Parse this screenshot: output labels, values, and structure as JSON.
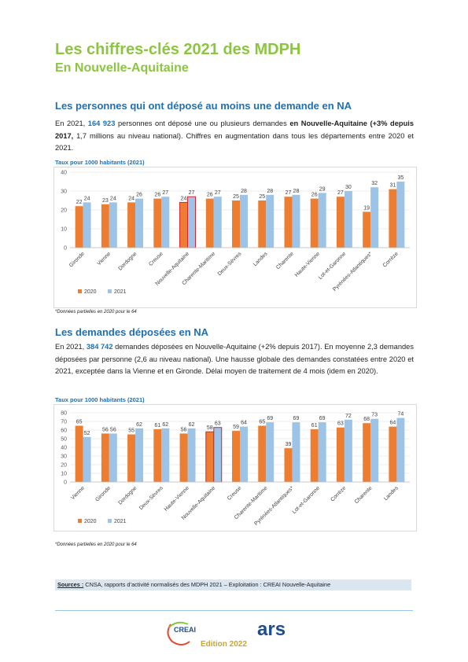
{
  "header": {
    "title": "Les chiffres-clés 2021 des MDPH",
    "subtitle": "En Nouvelle-Aquitaine"
  },
  "sections": [
    {
      "heading": "Les personnes qui ont déposé au moins une demande en NA",
      "paragraph": [
        "En 2021, ",
        "164 923",
        " personnes ont déposé une ou plusieurs demandes ",
        "en Nouvelle-Aquitaine (+3% depuis 2017,",
        " 1,7 millions au niveau national). Chiffres en augmentation dans tous les départements entre 2020 et 2021."
      ],
      "footnote": "*Données partielles en 2020 pour le 64"
    },
    {
      "heading": "Les demandes déposées en NA",
      "paragraph": [
        "En 2021, ",
        "384 742",
        " demandes déposées en Nouvelle-Aquitaine (+2% depuis 2017). En moyenne 2,3 demandes déposées par personne (2,6 au niveau national). Une hausse globale des demandes constatées entre 2020 et 2021, exceptée dans la Vienne et en Gironde. Délai moyen de traitement de 4 mois (idem en 2020)."
      ],
      "footnote": "*Données partielles en 2020 pour le 64"
    }
  ],
  "chart_data": [
    {
      "type": "bar",
      "title": "Taux pour 1000 habitants (2021)",
      "categories": [
        "Gironde",
        "Vienne",
        "Dordogne",
        "Creuse",
        "Nouvelle-Aquitaine",
        "Charente-Maritime",
        "Deux-Sèvres",
        "Landes",
        "Charente",
        "Haute-Vienne",
        "Lot-et-Garonne",
        "Pyrénées-Atlantiques*",
        "Corrèze"
      ],
      "series": [
        {
          "name": "2020",
          "color": "#ed7d31",
          "values": [
            22,
            23,
            24,
            26,
            24,
            26,
            25,
            25,
            27,
            26,
            27,
            19,
            31
          ]
        },
        {
          "name": "2021",
          "color": "#9dc3e6",
          "values": [
            24,
            24,
            26,
            27,
            27,
            27,
            28,
            28,
            28,
            29,
            30,
            32,
            35
          ]
        }
      ],
      "ylim": [
        0,
        40
      ],
      "yticks": [
        0,
        10,
        20,
        30,
        40
      ],
      "grid": true,
      "highlight_index": 4,
      "highlight_color": "#e0202a",
      "legend": "bottom-left"
    },
    {
      "type": "bar",
      "title": "Taux pour 1000 habitants (2021)",
      "categories": [
        "Vienne",
        "Gironde",
        "Dordogne",
        "Deux-Sèvres",
        "Haute-Vienne",
        "Nouvelle-Aquitaine",
        "Creuse",
        "Charente-Maritime",
        "Pyrénées-Atlantiques*",
        "Lot-et-Garonne",
        "Corrèze",
        "Charente",
        "Landes"
      ],
      "series": [
        {
          "name": "2020",
          "color": "#ed7d31",
          "values": [
            65,
            56,
            55,
            61,
            56,
            58,
            59,
            65,
            39,
            61,
            63,
            68,
            64
          ]
        },
        {
          "name": "2021",
          "color": "#9dc3e6",
          "values": [
            52,
            56,
            62,
            62,
            62,
            63,
            64,
            69,
            69,
            69,
            72,
            73,
            74
          ]
        }
      ],
      "ylim": [
        0,
        80
      ],
      "yticks": [
        0,
        10,
        20,
        30,
        40,
        50,
        60,
        70,
        80
      ],
      "grid": true,
      "highlight_index": 5,
      "highlight_color": "#e0202a",
      "legend": "bottom-left"
    }
  ],
  "sources": {
    "label": "Sources :",
    "text": " CNSA, rapports d’activité normalisés des MDPH 2021 – Exploitation : CREAI Nouvelle-Aquitaine"
  },
  "footer": {
    "logo_left": "CREAI",
    "logo_right": "ars",
    "edition": "Edition 2022"
  }
}
